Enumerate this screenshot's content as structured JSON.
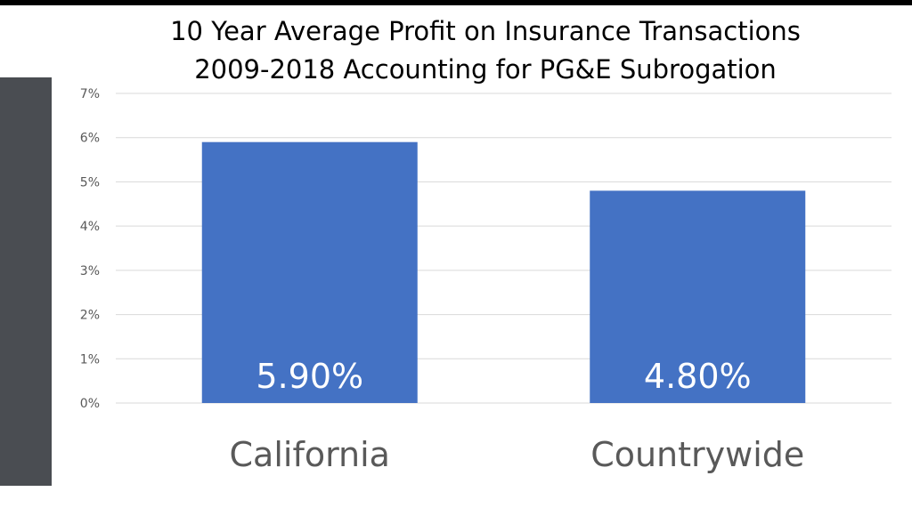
{
  "chart_data": {
    "type": "bar",
    "title": "10 Year Average Profit on Insurance Transactions",
    "subtitle": "2009-2018 Accounting for PG&E Subrogation",
    "categories": [
      "California",
      "Countrywide"
    ],
    "values": [
      5.9,
      4.8
    ],
    "data_labels": [
      "5.90%",
      "4.80%"
    ],
    "y_ticks": [
      0,
      1,
      2,
      3,
      4,
      5,
      6,
      7
    ],
    "y_tick_labels": [
      "0%",
      "1%",
      "2%",
      "3%",
      "4%",
      "5%",
      "6%",
      "7%"
    ],
    "ylim": [
      0,
      7
    ],
    "grid": true,
    "legend": "none",
    "colors": {
      "bar": "#4472c4",
      "grid": "#d9d9d9",
      "axis_text": "#595959",
      "data_label": "#ffffff",
      "side_panel": "#4a4d52"
    }
  }
}
